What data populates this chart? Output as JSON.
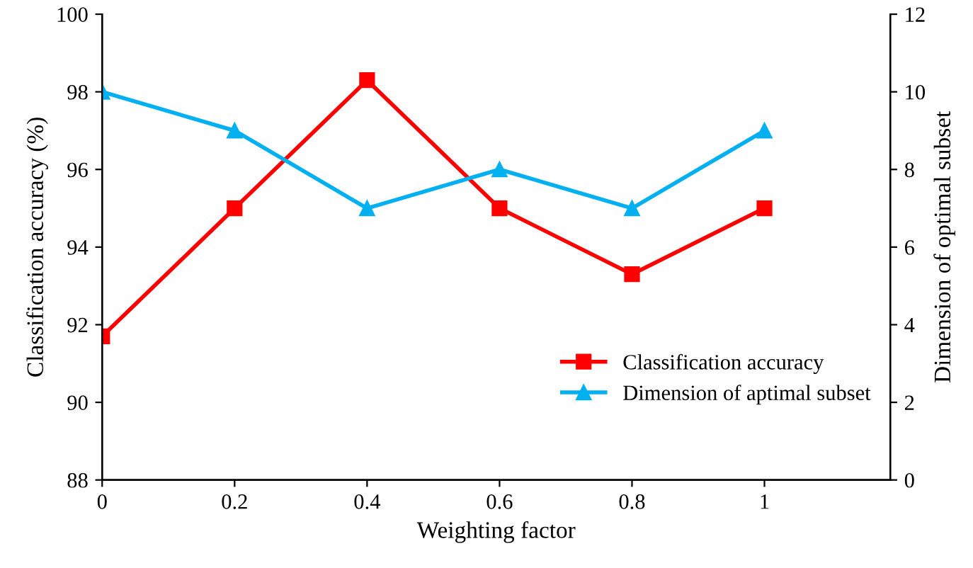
{
  "chart_data": {
    "type": "line",
    "xlabel": "Weighting factor",
    "ylabel": "Classification accuracy (%)",
    "y2label": "Dimension of optimal subset",
    "x": [
      0,
      0.2,
      0.4,
      0.6,
      0.8,
      1
    ],
    "series": [
      {
        "name": "Classification accuracy",
        "color": "#ff0000",
        "marker": "square",
        "values": [
          91.7,
          95,
          98.3,
          95,
          93.3,
          95
        ]
      },
      {
        "name": "Dimension of aptimal subset",
        "color": "#00b0f0",
        "marker": "triangle",
        "axis": "y2",
        "values": [
          10,
          9,
          7,
          8,
          7,
          9
        ]
      }
    ],
    "xlim": [
      0,
      1.19
    ],
    "xticks": [
      0,
      0.2,
      0.4,
      0.6,
      0.8,
      1
    ],
    "ylim": [
      88,
      100
    ],
    "yticks": [
      88,
      90,
      92,
      94,
      96,
      98,
      100
    ],
    "y2lim": [
      0,
      12
    ],
    "y2ticks": [
      0,
      2,
      4,
      6,
      8,
      10,
      12
    ],
    "grid": false,
    "legend": "bottom right",
    "line_style": "solid"
  }
}
